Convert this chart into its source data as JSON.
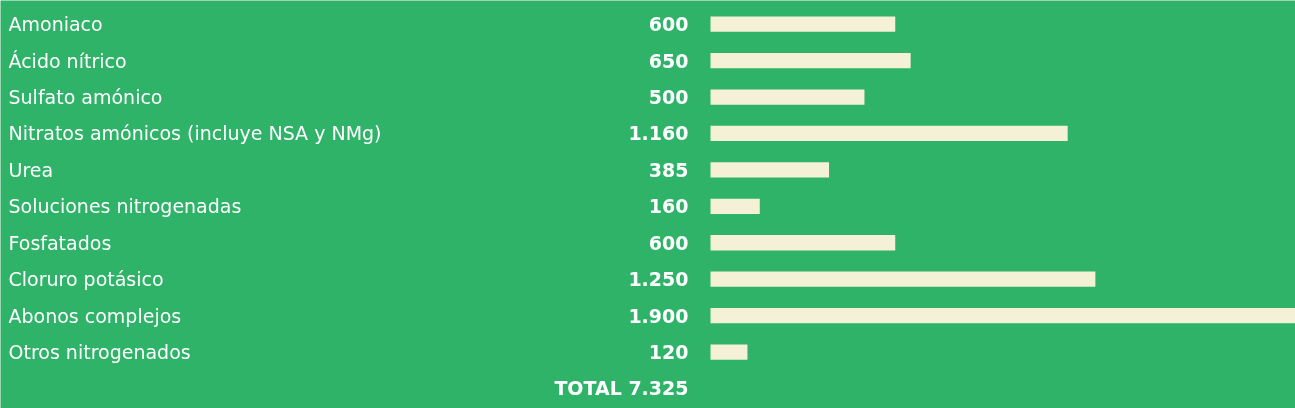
{
  "chart_data": {
    "type": "bar",
    "orientation": "horizontal",
    "categories": [
      "Amoniaco",
      "Ácido nítrico",
      "Sulfato amónico",
      "Nitratos amónicos (incluye NSA y NMg)",
      "Urea",
      "Soluciones nitrogenadas",
      "Fosfatados",
      "Cloruro potásico",
      "Abonos complejos",
      "Otros nitrogenados"
    ],
    "values": [
      600,
      650,
      500,
      1160,
      385,
      160,
      600,
      1250,
      1900,
      120
    ],
    "value_labels": [
      "600",
      "650",
      "500",
      "1.160",
      "385",
      "160",
      "600",
      "1.250",
      "1.900",
      "120"
    ],
    "color": "#f4f1d6",
    "annotations": [
      "TOTAL 7.325"
    ]
  }
}
